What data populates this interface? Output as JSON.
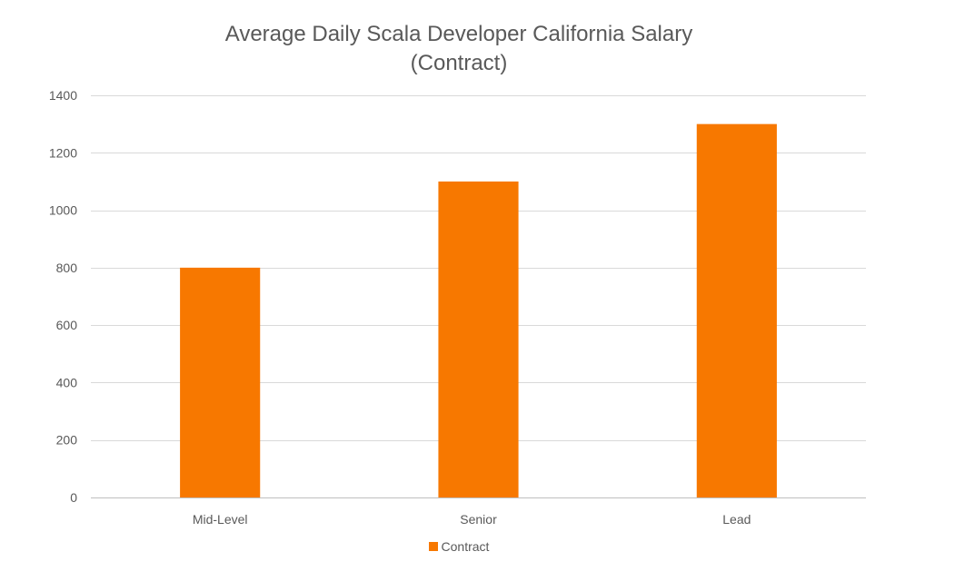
{
  "chart_data": {
    "type": "bar",
    "title_lines": [
      "Average Daily Scala Developer California Salary",
      "(Contract)"
    ],
    "categories": [
      "Mid-Level",
      "Senior",
      "Lead"
    ],
    "series": [
      {
        "name": "Contract",
        "values": [
          800,
          1100,
          1300
        ]
      }
    ],
    "xlabel": "",
    "ylabel": "",
    "ylim": [
      0,
      1400
    ],
    "yticks": [
      0,
      200,
      400,
      600,
      800,
      1000,
      1200,
      1400
    ],
    "grid": true,
    "legend_position": "bottom",
    "colors": {
      "bar": "#F77800",
      "grid": "#D9D9D9",
      "axis": "#BFBFBF",
      "text": "#595959"
    }
  }
}
